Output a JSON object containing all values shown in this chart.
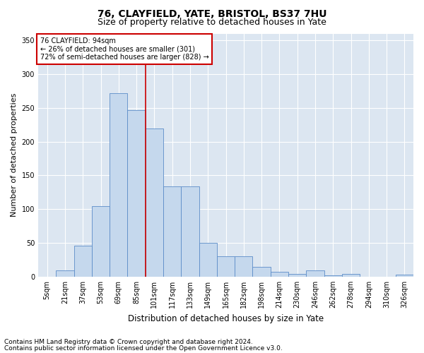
{
  "title": "76, CLAYFIELD, YATE, BRISTOL, BS37 7HU",
  "subtitle": "Size of property relative to detached houses in Yate",
  "xlabel": "Distribution of detached houses by size in Yate",
  "ylabel": "Number of detached properties",
  "footnote1": "Contains HM Land Registry data © Crown copyright and database right 2024.",
  "footnote2": "Contains public sector information licensed under the Open Government Licence v3.0.",
  "annotation_line1": "76 CLAYFIELD: 94sqm",
  "annotation_line2": "← 26% of detached houses are smaller (301)",
  "annotation_line3": "72% of semi-detached houses are larger (828) →",
  "bar_labels": [
    "5sqm",
    "21sqm",
    "37sqm",
    "53sqm",
    "69sqm",
    "85sqm",
    "101sqm",
    "117sqm",
    "133sqm",
    "149sqm",
    "165sqm",
    "182sqm",
    "198sqm",
    "214sqm",
    "230sqm",
    "246sqm",
    "262sqm",
    "278sqm",
    "294sqm",
    "310sqm",
    "326sqm"
  ],
  "bar_values": [
    0,
    9,
    46,
    104,
    272,
    247,
    219,
    134,
    134,
    50,
    30,
    30,
    15,
    7,
    4,
    9,
    2,
    4,
    0,
    0,
    3
  ],
  "bar_color": "#c5d8ed",
  "bar_edge_color": "#5b8cc8",
  "reference_line_x": 5.5,
  "reference_line_color": "#cc0000",
  "ylim": [
    0,
    360
  ],
  "yticks": [
    0,
    50,
    100,
    150,
    200,
    250,
    300,
    350
  ],
  "background_color": "#ffffff",
  "plot_bg_color": "#dce6f1",
  "grid_color": "#ffffff",
  "annotation_box_color": "#ffffff",
  "annotation_box_edge": "#cc0000",
  "title_fontsize": 10,
  "subtitle_fontsize": 9,
  "xlabel_fontsize": 8.5,
  "ylabel_fontsize": 8,
  "tick_fontsize": 7,
  "footnote_fontsize": 6.5
}
